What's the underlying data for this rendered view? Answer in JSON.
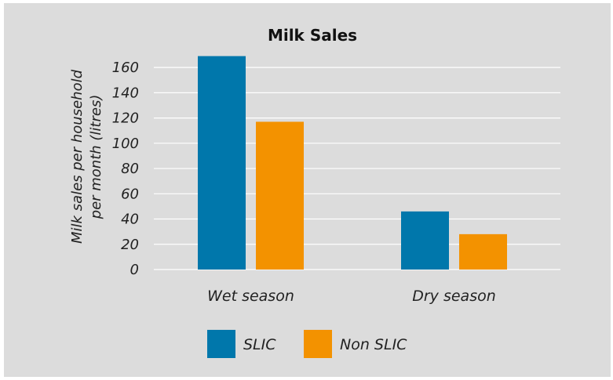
{
  "chart_data": {
    "type": "bar",
    "title": "Milk Sales",
    "ylabel_lines": [
      "Milk sales per household",
      "per month (litres)"
    ],
    "categories": [
      "Wet season",
      "Dry season"
    ],
    "series": [
      {
        "name": "SLIC",
        "values": [
          169,
          46
        ],
        "color": "#0077ab"
      },
      {
        "name": "Non SLIC",
        "values": [
          117,
          28
        ],
        "color": "#f39200"
      }
    ],
    "yticks": [
      0,
      20,
      40,
      60,
      80,
      100,
      120,
      140,
      160
    ],
    "ylim": [
      0,
      170
    ],
    "grid": true,
    "legend_position": "bottom"
  }
}
